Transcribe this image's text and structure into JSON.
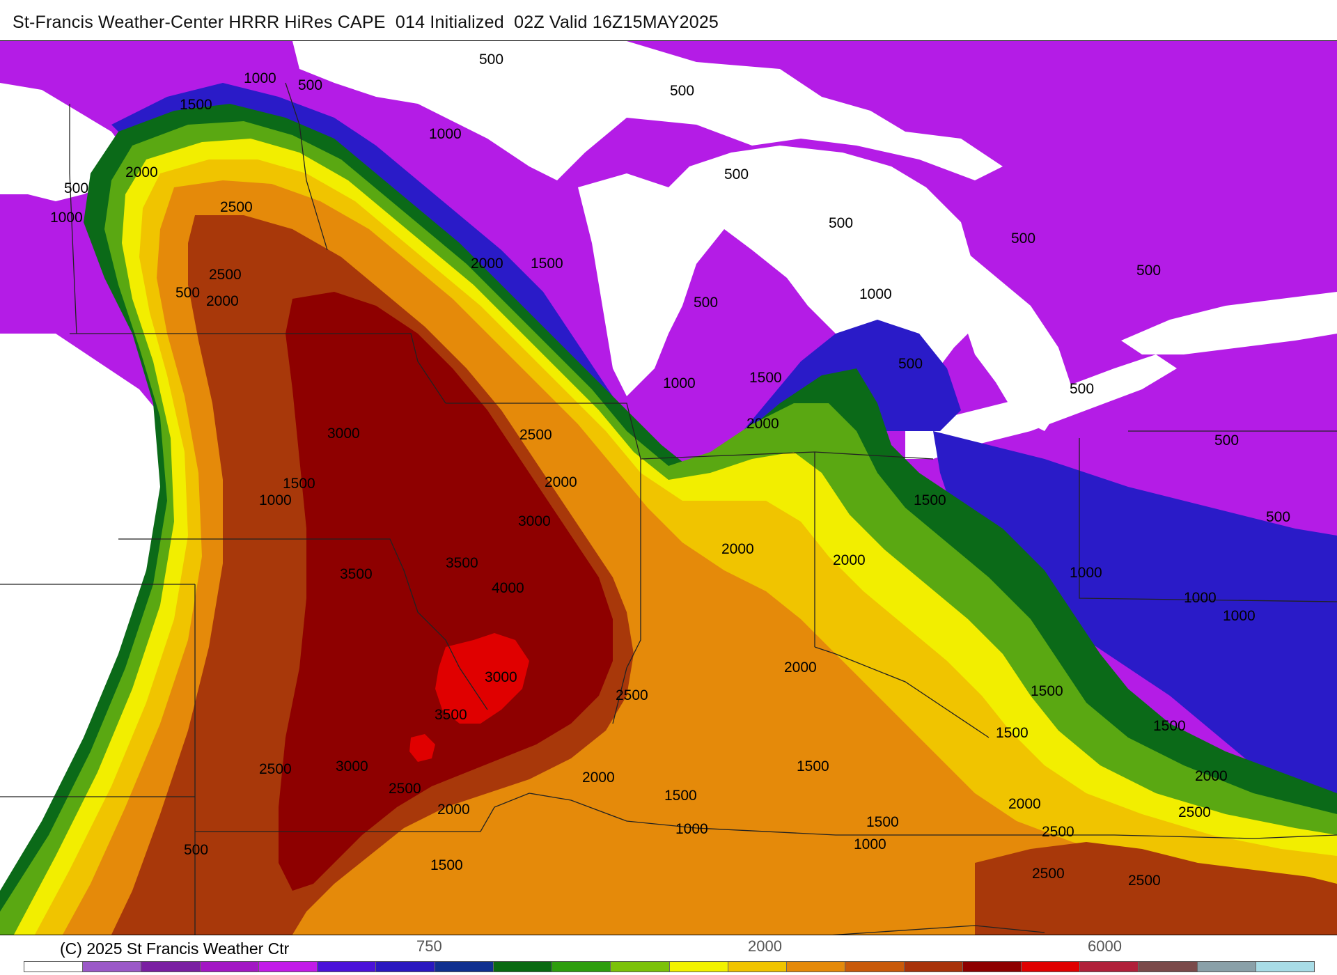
{
  "title": "St-Francis Weather-Center HRRR HiRes CAPE  014 Initialized  02Z Valid 16Z15MAY2025",
  "copyright": "(C) 2025 St Francis Weather Ctr",
  "colorbar": {
    "colors": [
      "#ffffff",
      "#9b59c8",
      "#7a1fa2",
      "#a317c4",
      "#c21be8",
      "#4b12d9",
      "#2a18c0",
      "#10308f",
      "#0a6a12",
      "#2e9e0e",
      "#7cc20a",
      "#f2f200",
      "#f0c400",
      "#e58a0a",
      "#c95a0a",
      "#a8320a",
      "#8e0000",
      "#e00000",
      "#b0203a",
      "#7a4a4a",
      "#8aa0a8",
      "#a8dce6"
    ],
    "tick_labels": [
      "750",
      "2000",
      "6000"
    ]
  },
  "contour_labels": [
    "500",
    "1000",
    "1500",
    "2000",
    "2500",
    "3000",
    "3500",
    "4000"
  ],
  "legend_palette": {
    "white": "#ffffff",
    "violet": "#b41ce6",
    "blue": "#2a1bc8",
    "darkgreen": "#0b6a18",
    "green": "#5aa812",
    "yellow": "#f2ee00",
    "gold": "#f0c400",
    "orange": "#e58a0a",
    "rust": "#a8380a",
    "darkred": "#8e0000",
    "red": "#e00000"
  }
}
